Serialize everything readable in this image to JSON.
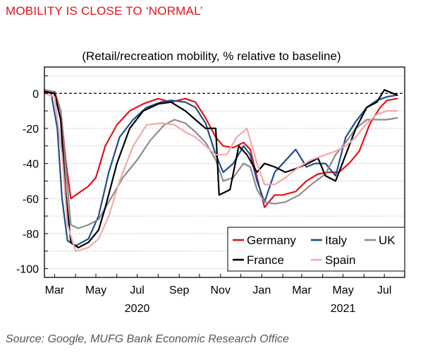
{
  "header": {
    "title": "MOBILITY IS CLOSE TO ‘NORMAL’",
    "subtitle": "(Retail/recreation mobility, % relative to baseline)"
  },
  "footer": {
    "source": "Source: Google, MUFG Bank Economic Research Office"
  },
  "chart_data": {
    "type": "line",
    "title": "",
    "xlabel": "",
    "ylabel": "",
    "ylim": [
      -105,
      15
    ],
    "yticks": [
      0,
      -20,
      -40,
      -60,
      -80,
      -100
    ],
    "ytick_labels": [
      "0",
      "-20",
      "-40",
      "-60",
      "-80",
      "-100"
    ],
    "xlim": [
      "2020-02-15",
      "2021-07-31"
    ],
    "xticks": [
      "2020-03-01",
      "2020-05-01",
      "2020-07-01",
      "2020-09-01",
      "2020-11-01",
      "2021-01-01",
      "2021-03-01",
      "2021-05-01",
      "2021-07-01"
    ],
    "xtick_labels": [
      "Mar",
      "May",
      "Jul",
      "Sep",
      "Nov",
      "Jan",
      "Mar",
      "May",
      "Jul"
    ],
    "year_labels": [
      {
        "date": "2020-07-01",
        "label": "2020"
      },
      {
        "date": "2021-05-01",
        "label": "2021"
      }
    ],
    "grid": "horizontal-dotted",
    "baseline": 0,
    "legend_position": "bottom-right",
    "series": [
      {
        "name": "Germany",
        "color": "#e3121b",
        "dates": [
          "2020-02-15",
          "2020-03-01",
          "2020-03-10",
          "2020-03-18",
          "2020-03-25",
          "2020-04-05",
          "2020-04-20",
          "2020-05-01",
          "2020-05-15",
          "2020-06-01",
          "2020-06-20",
          "2020-07-10",
          "2020-08-01",
          "2020-08-20",
          "2020-09-10",
          "2020-09-25",
          "2020-10-10",
          "2020-10-25",
          "2020-11-05",
          "2020-11-20",
          "2020-12-05",
          "2020-12-15",
          "2020-12-25",
          "2021-01-05",
          "2021-01-20",
          "2021-02-01",
          "2021-02-20",
          "2021-03-08",
          "2021-03-25",
          "2021-04-10",
          "2021-04-25",
          "2021-05-10",
          "2021-05-25",
          "2021-06-10",
          "2021-06-25",
          "2021-07-05",
          "2021-07-20"
        ],
        "values": [
          0,
          1,
          -10,
          -40,
          -60,
          -57,
          -53,
          -48,
          -30,
          -18,
          -10,
          -6,
          -3,
          -5,
          -3,
          -5,
          -14,
          -25,
          -30,
          -31,
          -28,
          -32,
          -48,
          -65,
          -58,
          -58,
          -56,
          -50,
          -46,
          -45,
          -45,
          -40,
          -33,
          -17,
          -8,
          -4,
          -3
        ]
      },
      {
        "name": "Italy",
        "color": "#1f4e8c",
        "dates": [
          "2020-02-15",
          "2020-02-25",
          "2020-03-05",
          "2020-03-12",
          "2020-03-20",
          "2020-04-01",
          "2020-04-20",
          "2020-05-05",
          "2020-05-20",
          "2020-06-05",
          "2020-06-25",
          "2020-07-15",
          "2020-08-05",
          "2020-08-20",
          "2020-09-10",
          "2020-09-25",
          "2020-10-10",
          "2020-10-25",
          "2020-11-05",
          "2020-11-20",
          "2020-12-05",
          "2020-12-15",
          "2020-12-25",
          "2021-01-05",
          "2021-01-20",
          "2021-02-01",
          "2021-02-20",
          "2021-03-08",
          "2021-03-20",
          "2021-04-05",
          "2021-04-20",
          "2021-05-05",
          "2021-05-20",
          "2021-06-05",
          "2021-06-20",
          "2021-07-05",
          "2021-07-20"
        ],
        "values": [
          2,
          0,
          -20,
          -60,
          -84,
          -87,
          -83,
          -70,
          -45,
          -25,
          -15,
          -8,
          -5,
          -4,
          -5,
          -8,
          -17,
          -35,
          -45,
          -40,
          -30,
          -35,
          -50,
          -62,
          -45,
          -40,
          -32,
          -42,
          -40,
          -40,
          -47,
          -25,
          -16,
          -8,
          -4,
          -2,
          -1
        ]
      },
      {
        "name": "UK",
        "color": "#8c8c8c",
        "dates": [
          "2020-02-15",
          "2020-02-28",
          "2020-03-10",
          "2020-03-18",
          "2020-03-25",
          "2020-04-05",
          "2020-04-20",
          "2020-05-05",
          "2020-05-20",
          "2020-06-10",
          "2020-07-01",
          "2020-07-20",
          "2020-08-10",
          "2020-08-25",
          "2020-09-10",
          "2020-09-25",
          "2020-10-10",
          "2020-10-25",
          "2020-11-05",
          "2020-11-20",
          "2020-12-05",
          "2020-12-15",
          "2020-12-25",
          "2021-01-05",
          "2021-01-20",
          "2021-02-05",
          "2021-02-25",
          "2021-03-15",
          "2021-04-05",
          "2021-04-20",
          "2021-05-05",
          "2021-05-20",
          "2021-06-05",
          "2021-06-20",
          "2021-07-05",
          "2021-07-20"
        ],
        "values": [
          2,
          1,
          -10,
          -45,
          -75,
          -77,
          -75,
          -72,
          -62,
          -48,
          -38,
          -27,
          -18,
          -15,
          -17,
          -22,
          -28,
          -38,
          -50,
          -48,
          -40,
          -42,
          -55,
          -62,
          -63,
          -62,
          -58,
          -52,
          -46,
          -35,
          -28,
          -20,
          -15,
          -15,
          -15,
          -14
        ]
      },
      {
        "name": "France",
        "color": "#000000",
        "dates": [
          "2020-02-15",
          "2020-03-01",
          "2020-03-10",
          "2020-03-17",
          "2020-03-25",
          "2020-04-05",
          "2020-04-20",
          "2020-05-05",
          "2020-05-15",
          "2020-06-01",
          "2020-06-20",
          "2020-07-10",
          "2020-08-01",
          "2020-08-20",
          "2020-09-10",
          "2020-09-25",
          "2020-10-10",
          "2020-10-25",
          "2020-10-30",
          "2020-11-15",
          "2020-11-28",
          "2020-12-10",
          "2020-12-25",
          "2021-01-05",
          "2021-01-20",
          "2021-02-05",
          "2021-02-20",
          "2021-03-10",
          "2021-03-25",
          "2021-04-05",
          "2021-04-20",
          "2021-05-05",
          "2021-05-20",
          "2021-06-05",
          "2021-06-20",
          "2021-07-01",
          "2021-07-20"
        ],
        "values": [
          1,
          0,
          -15,
          -55,
          -85,
          -88,
          -85,
          -78,
          -65,
          -40,
          -20,
          -10,
          -6,
          -5,
          -10,
          -15,
          -20,
          -20,
          -58,
          -55,
          -30,
          -35,
          -45,
          -40,
          -42,
          -45,
          -43,
          -40,
          -37,
          -47,
          -50,
          -35,
          -20,
          -8,
          -5,
          2,
          -1
        ]
      },
      {
        "name": "Spain",
        "color": "#f4a9a8",
        "dates": [
          "2020-02-15",
          "2020-03-01",
          "2020-03-12",
          "2020-03-20",
          "2020-04-01",
          "2020-04-20",
          "2020-05-05",
          "2020-05-20",
          "2020-06-05",
          "2020-06-25",
          "2020-07-15",
          "2020-08-05",
          "2020-08-25",
          "2020-09-10",
          "2020-09-25",
          "2020-10-10",
          "2020-10-25",
          "2020-11-10",
          "2020-11-25",
          "2020-12-10",
          "2020-12-25",
          "2021-01-05",
          "2021-01-20",
          "2021-02-05",
          "2021-02-25",
          "2021-03-15",
          "2021-04-05",
          "2021-04-20",
          "2021-05-05",
          "2021-05-20",
          "2021-06-05",
          "2021-06-20",
          "2021-07-05",
          "2021-07-20"
        ],
        "values": [
          0,
          -2,
          -35,
          -75,
          -90,
          -88,
          -83,
          -70,
          -50,
          -30,
          -18,
          -17,
          -18,
          -22,
          -25,
          -30,
          -35,
          -35,
          -25,
          -20,
          -40,
          -52,
          -52,
          -48,
          -42,
          -38,
          -35,
          -33,
          -30,
          -25,
          -17,
          -12,
          -10,
          -10
        ]
      }
    ],
    "legend": [
      {
        "series": 0,
        "row": 0,
        "col": 0
      },
      {
        "series": 1,
        "row": 0,
        "col": 1
      },
      {
        "series": 2,
        "row": 0,
        "col": 2
      },
      {
        "series": 3,
        "row": 1,
        "col": 0
      },
      {
        "series": 4,
        "row": 1,
        "col": 1
      }
    ]
  }
}
